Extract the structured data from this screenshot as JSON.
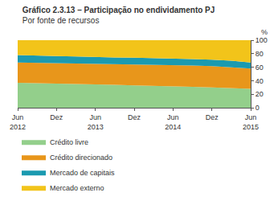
{
  "chart_data": {
    "type": "area",
    "title": "Gráfico 2.3.13 – Participação no endividamento PJ",
    "subtitle": "Por fonte de recursos",
    "ylabel": "%",
    "categories": [
      "Jun 2012",
      null,
      "Dez",
      null,
      "Jun 2013",
      null,
      "Dez",
      null,
      "Jun 2014",
      null,
      "Dez",
      null,
      "Jun 2015"
    ],
    "series": [
      {
        "name": "Crédito livre",
        "color": "#93cf8b",
        "values": [
          37,
          36.5,
          36,
          35,
          34.5,
          34,
          33,
          32.5,
          31.5,
          31,
          30,
          29,
          28
        ]
      },
      {
        "name": "Crédito direcionado",
        "color": "#e8961b",
        "values": [
          30,
          30,
          30.5,
          31,
          31,
          31,
          31.5,
          31.5,
          32,
          31.5,
          31.5,
          31,
          30
        ]
      },
      {
        "name": "Mercado de capitais",
        "color": "#1b9ab0",
        "values": [
          11,
          10.5,
          10,
          10,
          9.5,
          9.5,
          9.5,
          9.5,
          9.5,
          9.5,
          9.5,
          9.5,
          9
        ]
      },
      {
        "name": "Mercado externo",
        "color": "#f2c41a",
        "values": [
          22,
          23,
          23.5,
          24,
          25,
          25.5,
          26,
          26.5,
          27,
          28,
          29,
          30.5,
          33
        ]
      }
    ],
    "stacked": true,
    "ylim": [
      0,
      100
    ],
    "yticks": [
      0,
      20,
      40,
      60,
      80,
      100
    ],
    "grid": false,
    "legend": "bottom"
  }
}
